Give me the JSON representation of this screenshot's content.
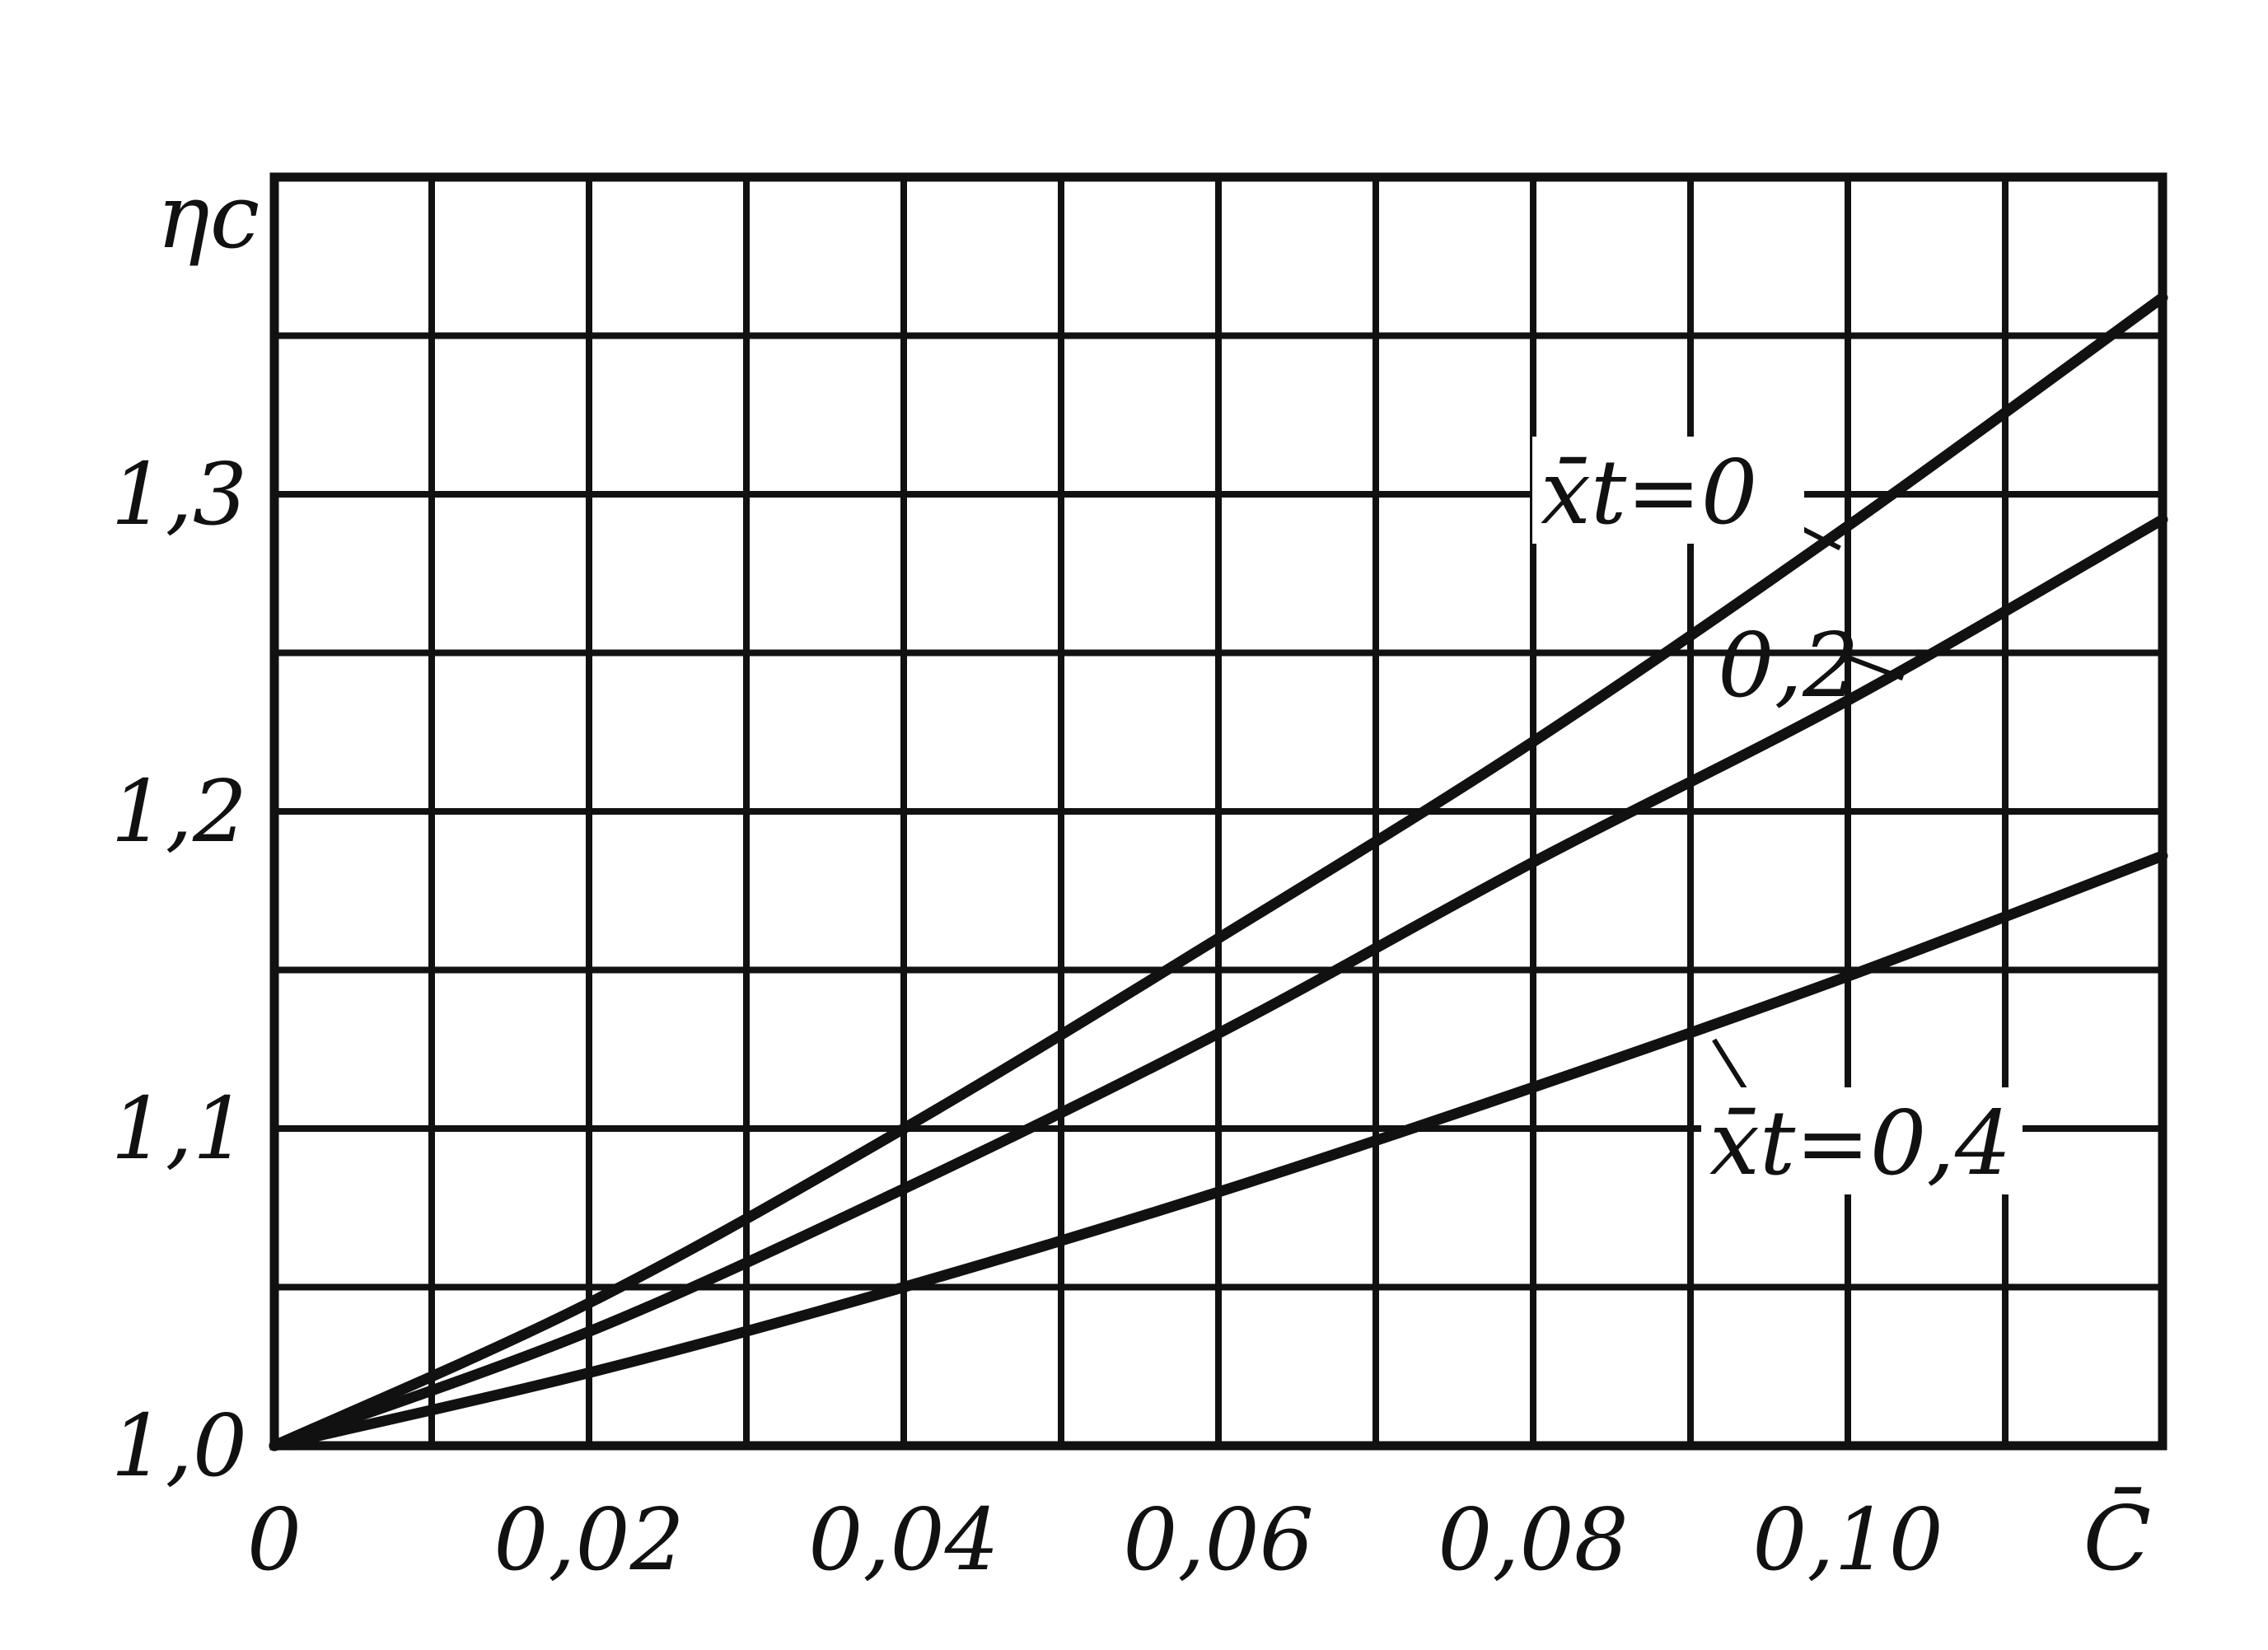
{
  "chart_data": {
    "type": "line",
    "title": "",
    "xlabel": "C̄",
    "ylabel": "ηc",
    "xlim": [
      0,
      0.12
    ],
    "ylim": [
      1.0,
      1.4
    ],
    "x_ticks": [
      0,
      0.02,
      0.04,
      0.06,
      0.08,
      0.1
    ],
    "x_tick_labels": [
      "0",
      "0,02",
      "0,04",
      "0,06",
      "0,08",
      "0,10"
    ],
    "y_ticks": [
      1.0,
      1.1,
      1.2,
      1.3
    ],
    "y_tick_labels": [
      "1,0",
      "1,1",
      "1,2",
      "1,3"
    ],
    "grid": true,
    "grid_x_step": 0.01,
    "grid_y_step": 0.05,
    "legend": "none",
    "series": [
      {
        "name": "x̄t=0",
        "label": "x̄t=0",
        "x": [
          0,
          0.02,
          0.04,
          0.06,
          0.08,
          0.1,
          0.12
        ],
        "y": [
          1.0,
          1.045,
          1.1,
          1.16,
          1.222,
          1.29,
          1.362
        ]
      },
      {
        "name": "0,2",
        "label": "0,2",
        "x": [
          0,
          0.02,
          0.04,
          0.06,
          0.08,
          0.1,
          0.12
        ],
        "y": [
          1.0,
          1.036,
          1.081,
          1.13,
          1.184,
          1.235,
          1.292
        ]
      },
      {
        "name": "x̄t=0,4",
        "label": "x̄t=0,4",
        "x": [
          0,
          0.02,
          0.04,
          0.06,
          0.08,
          0.1,
          0.12
        ],
        "y": [
          1.0,
          1.023,
          1.05,
          1.08,
          1.113,
          1.148,
          1.186
        ]
      }
    ]
  }
}
